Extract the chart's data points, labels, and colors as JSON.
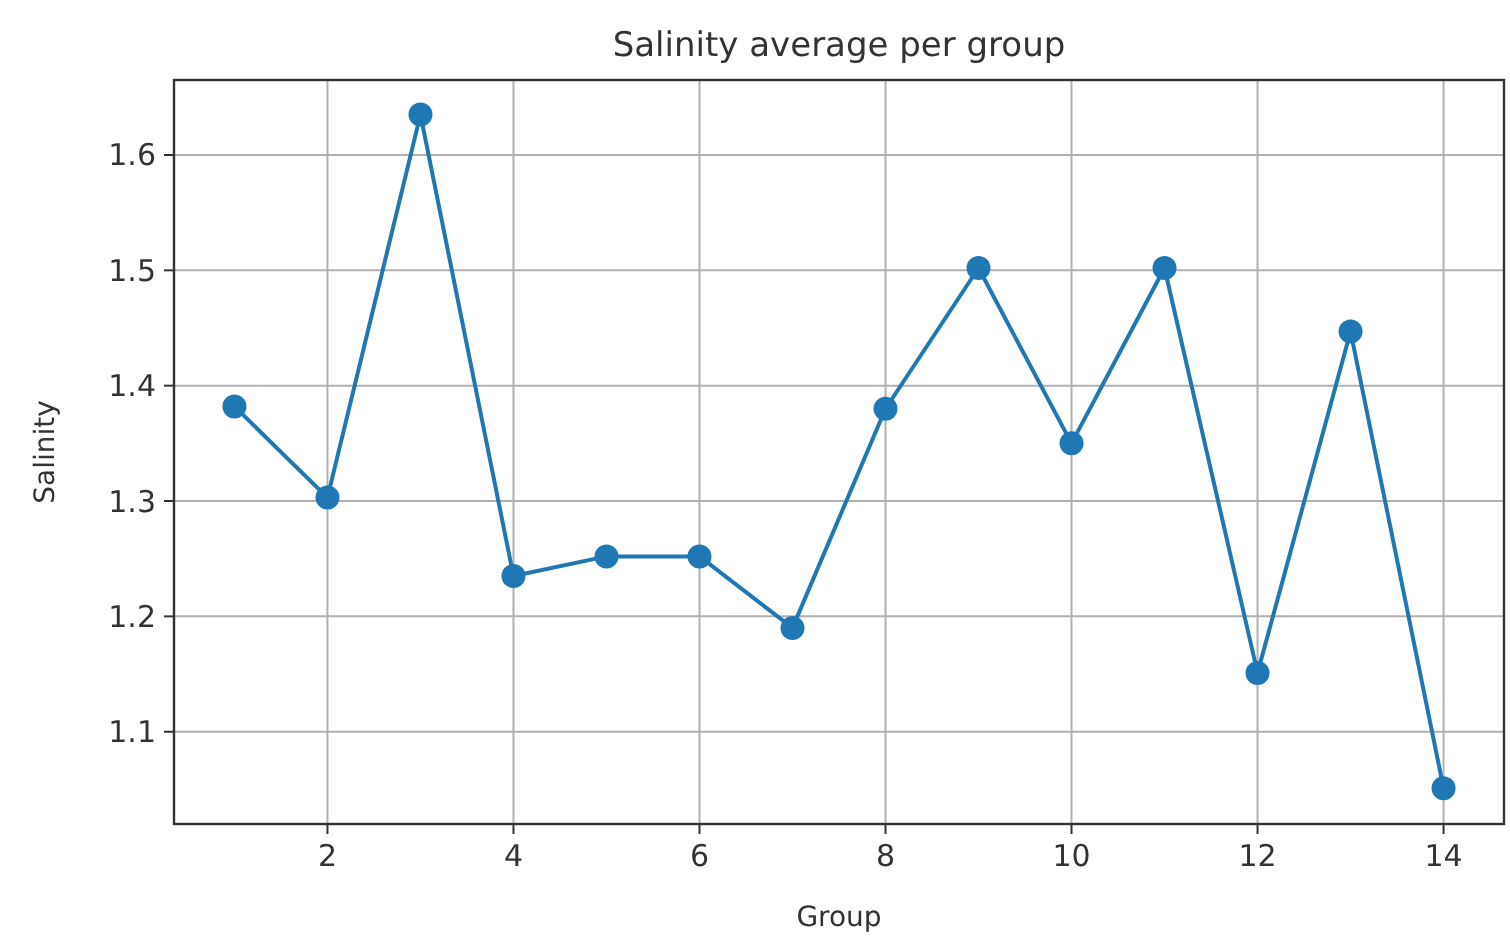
{
  "chart_data": {
    "type": "line",
    "title": "Salinity average per group",
    "xlabel": "Group",
    "ylabel": "Salinity",
    "x": [
      1,
      2,
      3,
      4,
      5,
      6,
      7,
      8,
      9,
      10,
      11,
      12,
      13,
      14
    ],
    "series": [
      {
        "color": "#1f77b4",
        "values": [
          1.382,
          1.303,
          1.635,
          1.235,
          1.252,
          1.252,
          1.19,
          1.38,
          1.502,
          1.35,
          1.502,
          1.151,
          1.447,
          1.051
        ]
      }
    ],
    "xlim": [
      0.35,
      14.65
    ],
    "ylim": [
      1.02,
      1.665
    ],
    "xticks": [
      2,
      4,
      6,
      8,
      10,
      12,
      14
    ],
    "yticks": [
      1.1,
      1.2,
      1.3,
      1.4,
      1.5,
      1.6
    ],
    "grid": true,
    "marker": "circle",
    "line_style": "solid"
  }
}
